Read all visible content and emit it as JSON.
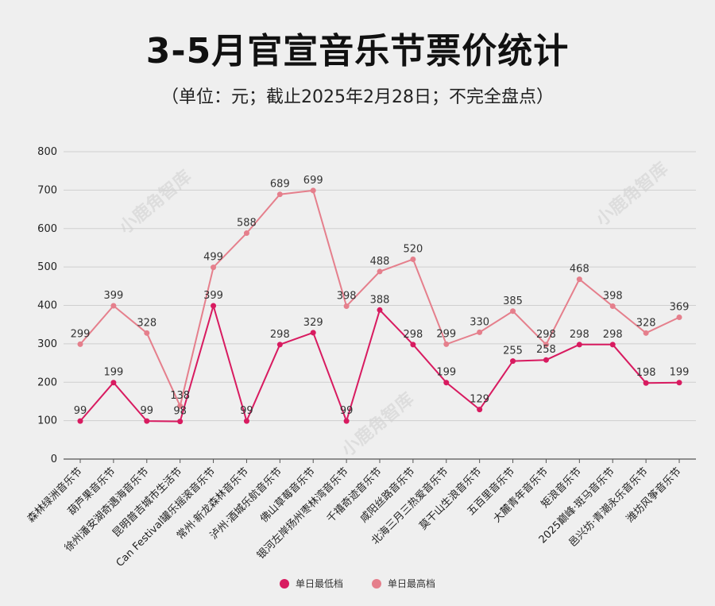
{
  "chart_data": {
    "type": "line",
    "title": "3-5月官宣音乐节票价统计",
    "subtitle": "（单位：元；截止2025年2月28日；不完全盘点）",
    "ylim": [
      0,
      800
    ],
    "yticks": [
      0,
      100,
      200,
      300,
      400,
      500,
      600,
      700,
      800
    ],
    "grid": true,
    "legend_position": "bottom-center",
    "categories": [
      "森林绿洲音乐节",
      "葫芦果音乐节",
      "徐州潘安湖奇遇海音乐节",
      "昆明普吉城市生活节",
      "Can Festival罐乐摇滚音乐节",
      "常州·新龙森林音乐节",
      "泸州·酒城乐航音乐节",
      "佛山草莓音乐节",
      "银河左岸扬州枣林湾音乐节",
      "千禧奇迹音乐节",
      "咸阳丝路音乐节",
      "北海三月三热爱音乐节",
      "莫干山生浪音乐节",
      "五百里音乐节",
      "大麓青年音乐节",
      "矩浪音乐节",
      "2025巅峰·斑马音乐节",
      "邑兴坊·青潮永乐音乐节",
      "潍坊风筝音乐节"
    ],
    "series": [
      {
        "name": "单日最低档",
        "color": "#d81b60",
        "values": [
          99,
          199,
          99,
          98,
          399,
          99,
          298,
          329,
          99,
          388,
          298,
          199,
          129,
          255,
          258,
          298,
          298,
          198,
          199
        ]
      },
      {
        "name": "单日最高档",
        "color": "#e57f8c",
        "values": [
          299,
          399,
          328,
          138,
          499,
          588,
          689,
          699,
          398,
          488,
          520,
          299,
          330,
          385,
          298,
          468,
          398,
          328,
          369
        ]
      }
    ]
  },
  "watermark": "小鹿角智库"
}
